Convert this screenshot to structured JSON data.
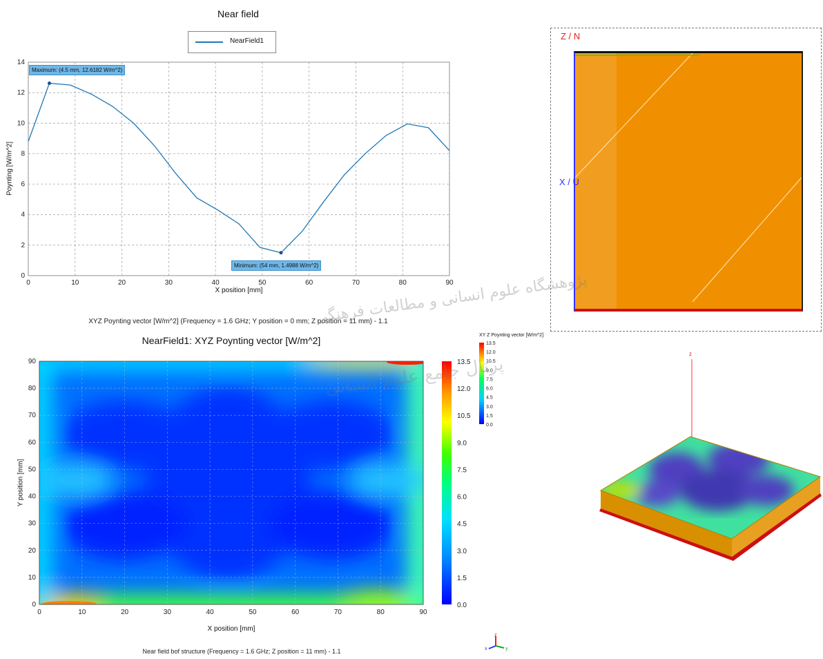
{
  "line_chart": {
    "title": "Near field",
    "legend": "NearField1",
    "xlabel": "X position [mm]",
    "ylabel": "Poynting [W/m^2]",
    "max_label": "Maximum: (4.5 mm, 12.6182 W/m^2)",
    "min_label": "Minimum: (54 mm, 1.4988 W/m^2)",
    "caption": "XYZ Poynting vector [W/m^2] (Frequency = 1.6 GHz; Y position = 0 mm; Z position = 11 mm) - 1.1"
  },
  "heatmap": {
    "title": "NearField1: XYZ Poynting vector [W/m^2]",
    "xlabel": "X position [mm]",
    "ylabel": "Y position [mm]",
    "caption": "Near field bof structure (Frequency = 1.6 GHz; Z position = 11 mm) - 1.1"
  },
  "view3d": {
    "top_axis_z": "Z / N",
    "top_axis_x": "X / U",
    "legend_title": "XY Z Poynting vector [W/m^2]",
    "legend_values": [
      "13.5",
      "12.0",
      "10.5",
      "9.0",
      "7.5",
      "6.0",
      "4.5",
      "3.0",
      "1.5",
      "0.0"
    ],
    "z_label": "z",
    "triad_z": "z",
    "triad_x": "x",
    "triad_y": "y"
  },
  "watermark": {
    "line1": "پژوهشگاه علوم انسانی و مطالعات فرهنگی",
    "line2": "پرتال جامع علوم انسانی"
  },
  "chart_data": [
    {
      "type": "line",
      "title": "Near field",
      "xlabel": "X position [mm]",
      "ylabel": "Poynting [W/m^2]",
      "xlim": [
        0,
        90
      ],
      "ylim": [
        0,
        14
      ],
      "xticks": [
        0,
        10,
        20,
        30,
        40,
        50,
        60,
        70,
        80,
        90
      ],
      "yticks": [
        0,
        2,
        4,
        6,
        8,
        10,
        12,
        14
      ],
      "grid": true,
      "legend_position": "top-center",
      "series": [
        {
          "name": "NearField1",
          "color": "#1f77b4",
          "x": [
            0,
            4.5,
            9,
            13.5,
            18,
            22.5,
            27,
            31.5,
            36,
            40.5,
            45,
            49.5,
            54,
            58.5,
            63,
            67.5,
            72,
            76.5,
            81,
            85.5,
            90
          ],
          "y": [
            8.8,
            12.62,
            12.5,
            11.9,
            11.1,
            10.0,
            8.5,
            6.7,
            5.1,
            4.3,
            3.4,
            1.85,
            1.4988,
            2.9,
            4.8,
            6.6,
            8.0,
            9.2,
            9.95,
            9.7,
            8.2
          ]
        }
      ],
      "annotations": [
        {
          "text": "Maximum: (4.5 mm, 12.6182 W/m^2)",
          "x": 4.5,
          "y": 12.6182
        },
        {
          "text": "Minimum: (54 mm, 1.4988 W/m^2)",
          "x": 54,
          "y": 1.4988
        }
      ]
    },
    {
      "type": "heatmap",
      "title": "NearField1: XYZ Poynting vector [W/m^2]",
      "xlabel": "X position [mm]",
      "ylabel": "Y position [mm]",
      "xlim": [
        0,
        90
      ],
      "ylim": [
        0,
        90
      ],
      "xticks": [
        0,
        10,
        20,
        30,
        40,
        50,
        60,
        70,
        80,
        90
      ],
      "yticks": [
        0,
        10,
        20,
        30,
        40,
        50,
        60,
        70,
        80,
        90
      ],
      "colorbar": [
        0.0,
        1.5,
        3.0,
        4.5,
        6.0,
        7.5,
        9.0,
        10.5,
        12.0,
        13.5
      ],
      "grid": true
    }
  ]
}
